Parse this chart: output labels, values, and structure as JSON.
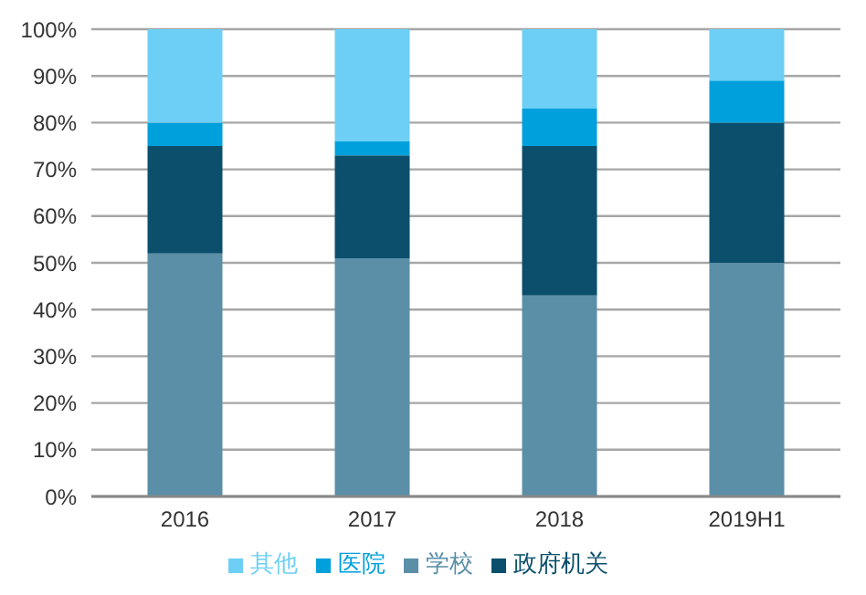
{
  "chart_data": {
    "type": "bar",
    "stacked": true,
    "categories": [
      "2016",
      "2017",
      "2018",
      "2019H1"
    ],
    "series": [
      {
        "name": "学校",
        "color": "#5b8fa8",
        "values": [
          52,
          51,
          43,
          50
        ]
      },
      {
        "name": "政府机关",
        "color": "#0b4f6c",
        "values": [
          23,
          22,
          32,
          30
        ]
      },
      {
        "name": "医院",
        "color": "#00a0dc",
        "values": [
          5,
          3,
          8,
          9
        ]
      },
      {
        "name": "其他",
        "color": "#6dcff6",
        "values": [
          20,
          24,
          17,
          11
        ]
      }
    ],
    "ylim": [
      0,
      100
    ],
    "yticks": [
      {
        "value": 0,
        "label": "0%"
      },
      {
        "value": 10,
        "label": "10%"
      },
      {
        "value": 20,
        "label": "20%"
      },
      {
        "value": 30,
        "label": "30%"
      },
      {
        "value": 40,
        "label": "40%"
      },
      {
        "value": 50,
        "label": "50%"
      },
      {
        "value": 60,
        "label": "60%"
      },
      {
        "value": 70,
        "label": "70%"
      },
      {
        "value": 80,
        "label": "80%"
      },
      {
        "value": 90,
        "label": "90%"
      },
      {
        "value": 100,
        "label": "100%"
      }
    ],
    "grid": "y",
    "legend": "bottom"
  }
}
